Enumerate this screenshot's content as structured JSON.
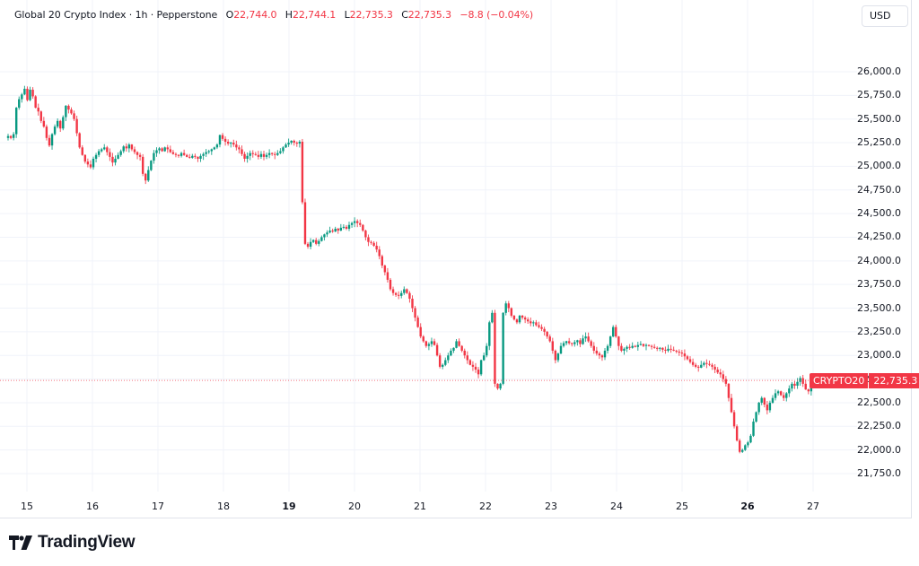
{
  "legend": {
    "symbol": "Global 20 Crypto Index · 1h · Pepperstone",
    "open_label": "O",
    "open": "22,744.0",
    "high_label": "H",
    "high": "22,744.1",
    "low_label": "L",
    "low": "22,735.3",
    "close_label": "C",
    "close": "22,735.3",
    "change": "−8.8 (−0.04%)"
  },
  "currency": "USD",
  "price_tag": {
    "name": "CRYPTO20",
    "value": "22,735.3"
  },
  "brand": {
    "name": "TradingView"
  },
  "colors": {
    "up": "#089981",
    "down": "#f23645",
    "grid": "#f0f3fa",
    "text": "#131722"
  },
  "chart_data": {
    "type": "candlestick",
    "title": "Global 20 Crypto Index · 1h · Pepperstone",
    "interval": "1h",
    "currency": "USD",
    "ylim": [
      21600,
      26250
    ],
    "y_ticks": [
      "26,000.0",
      "25,750.0",
      "25,500.0",
      "25,250.0",
      "25,000.0",
      "24,750.0",
      "24,500.0",
      "24,250.0",
      "24,000.0",
      "23,750.0",
      "23,500.0",
      "23,250.0",
      "23,000.0",
      "22,750.0",
      "22,500.0",
      "22,250.0",
      "22,000.0",
      "21,750.0"
    ],
    "x_ticks": [
      {
        "label": "15",
        "bold": false
      },
      {
        "label": "16",
        "bold": false
      },
      {
        "label": "17",
        "bold": false
      },
      {
        "label": "18",
        "bold": false
      },
      {
        "label": "19",
        "bold": true
      },
      {
        "label": "20",
        "bold": false
      },
      {
        "label": "21",
        "bold": false
      },
      {
        "label": "22",
        "bold": false
      },
      {
        "label": "23",
        "bold": false
      },
      {
        "label": "24",
        "bold": false
      },
      {
        "label": "25",
        "bold": false
      },
      {
        "label": "26",
        "bold": true
      },
      {
        "label": "27",
        "bold": false
      }
    ],
    "last_price": 22735.3,
    "path_note": "approximate hourly close path read from chart; index 0 ≈ Jan 14 17:00",
    "closes": [
      25320,
      25300,
      25340,
      25620,
      25710,
      25760,
      25820,
      25700,
      25810,
      25740,
      25620,
      25580,
      25480,
      25420,
      25300,
      25220,
      25340,
      25420,
      25480,
      25400,
      25520,
      25640,
      25600,
      25560,
      25500,
      25350,
      25200,
      25120,
      25050,
      25020,
      24990,
      25080,
      25120,
      25160,
      25180,
      25200,
      25150,
      25100,
      25040,
      25080,
      25120,
      25160,
      25210,
      25190,
      25230,
      25180,
      25150,
      25120,
      25100,
      24920,
      24850,
      24960,
      25060,
      25140,
      25170,
      25190,
      25160,
      25200,
      25180,
      25150,
      25130,
      25120,
      25110,
      25140,
      25120,
      25100,
      25090,
      25110,
      25100,
      25080,
      25110,
      25130,
      25150,
      25160,
      25180,
      25200,
      25230,
      25330,
      25290,
      25260,
      25240,
      25250,
      25230,
      25200,
      25180,
      25130,
      25080,
      25110,
      25140,
      25130,
      25120,
      25100,
      25130,
      25100,
      25120,
      25140,
      25130,
      25120,
      25140,
      25160,
      25200,
      25230,
      25250,
      25270,
      25250,
      25240,
      25260,
      24620,
      24180,
      24150,
      24200,
      24220,
      24180,
      24210,
      24250,
      24280,
      24300,
      24320,
      24310,
      24340,
      24320,
      24350,
      24360,
      24340,
      24380,
      24400,
      24420,
      24400,
      24380,
      24320,
      24250,
      24200,
      24190,
      24160,
      24120,
      24050,
      23950,
      23880,
      23800,
      23700,
      23660,
      23640,
      23630,
      23660,
      23700,
      23660,
      23600,
      23500,
      23400,
      23300,
      23200,
      23150,
      23100,
      23120,
      23150,
      23110,
      23000,
      22880,
      22900,
      22950,
      23000,
      23050,
      23080,
      23150,
      23100,
      23050,
      23000,
      22950,
      22900,
      22880,
      22850,
      22800,
      22950,
      23000,
      23100,
      23350,
      23450,
      22700,
      22650,
      22700,
      23450,
      23550,
      23500,
      23420,
      23380,
      23350,
      23420,
      23400,
      23380,
      23360,
      23340,
      23350,
      23320,
      23300,
      23280,
      23250,
      23200,
      23150,
      23050,
      22950,
      23020,
      23100,
      23130,
      23150,
      23130,
      23120,
      23140,
      23160,
      23120,
      23180,
      23200,
      23150,
      23100,
      23050,
      23020,
      23000,
      22980,
      23050,
      23100,
      23200,
      23300,
      23200,
      23100,
      23050,
      23070,
      23090,
      23080,
      23100,
      23090,
      23110,
      23120,
      23100,
      23110,
      23100,
      23090,
      23080,
      23070,
      23080,
      23060,
      23050,
      23070,
      23060,
      23050,
      23040,
      23030,
      23020,
      22990,
      22960,
      22930,
      22900,
      22880,
      22870,
      22900,
      22920,
      22910,
      22900,
      22880,
      22850,
      22820,
      22800,
      22750,
      22700,
      22550,
      22400,
      22250,
      22100,
      21980,
      22000,
      22050,
      22080,
      22150,
      22300,
      22400,
      22500,
      22550,
      22480,
      22420,
      22500,
      22550,
      22600,
      22620,
      22580,
      22550,
      22600,
      22650,
      22700,
      22680,
      22720,
      22760,
      22700,
      22640,
      22620,
      22700,
      22744,
      22735.3
    ]
  }
}
